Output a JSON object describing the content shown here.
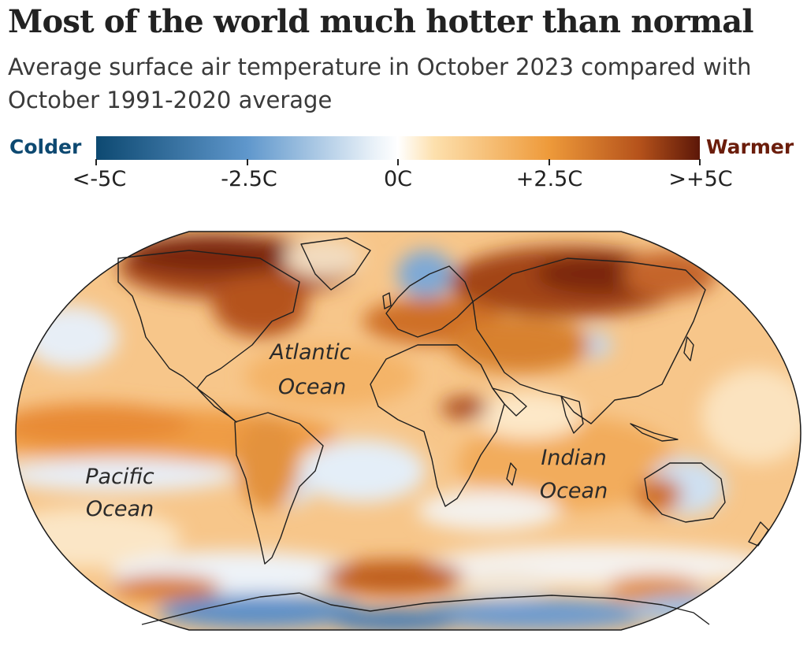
{
  "header": {
    "title": "Most of the world much hotter than normal",
    "subtitle": "Average surface air temperature in October 2023 compared with October 1991-2020 average"
  },
  "legend": {
    "colder_label": "Colder",
    "warmer_label": "Warmer",
    "ticks": [
      "<-5C",
      "-2.5C",
      "0C",
      "+2.5C",
      ">+5C"
    ],
    "colors": {
      "cold_extreme": "#0d4971",
      "cold_mid": "#5f97cc",
      "neutral": "#ffffff",
      "warm_light": "#fde0ad",
      "warm_mid": "#ee9a3a",
      "warm_strong": "#b5521b",
      "warm_extreme": "#5c1708"
    }
  },
  "map": {
    "ocean_labels": {
      "atlantic_line1": "Atlantic",
      "atlantic_line2": "Ocean",
      "indian_line1": "Indian",
      "indian_line2": "Ocean",
      "pacific_line1": "Pacific",
      "pacific_line2": "Ocean"
    }
  }
}
